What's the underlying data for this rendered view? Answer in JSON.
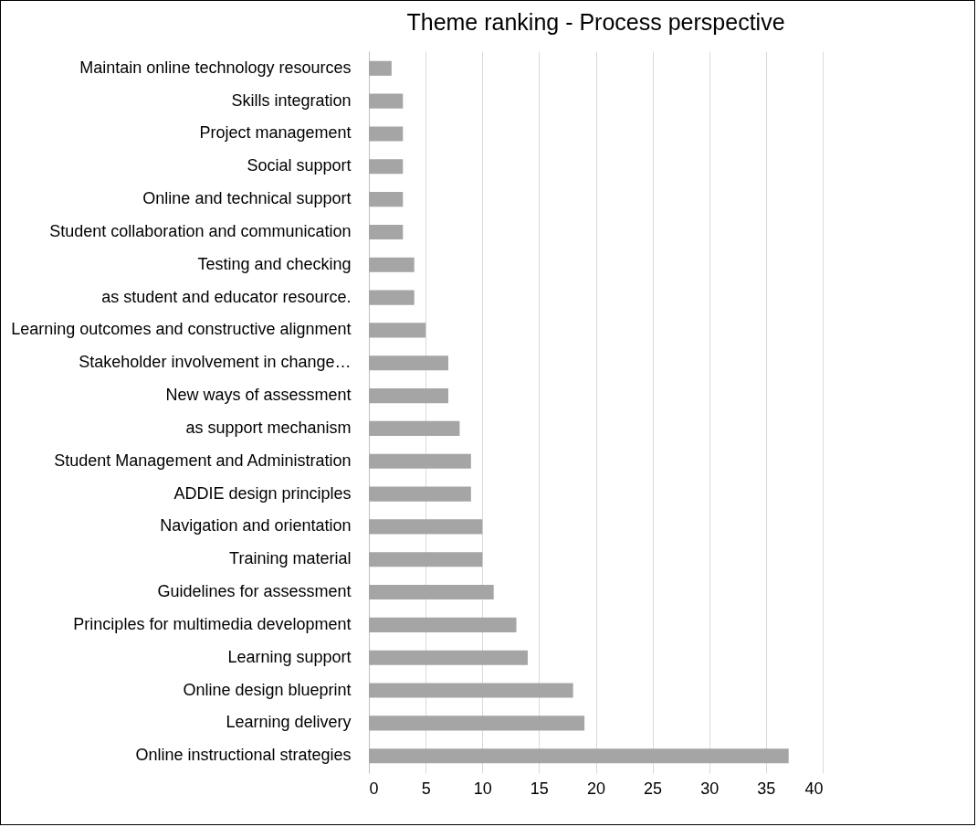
{
  "chart_data": {
    "type": "bar",
    "orientation": "horizontal",
    "title": "Theme ranking - Process perspective",
    "categories": [
      "Maintain online technology resources",
      "Skills integration",
      "Project management",
      "Social support",
      "Online and technical support",
      "Student collaboration and communication",
      "Testing and checking",
      "as student and educator resource.",
      "Learning outcomes and constructive alignment",
      "Stakeholder involvement in change…",
      "New ways of assessment",
      "as support mechanism",
      "Student Management and Administration",
      "ADDIE design principles",
      "Navigation and orientation",
      "Training material",
      "Guidelines for assessment",
      "Principles for multimedia development",
      "Learning support",
      "Online design blueprint",
      "Learning delivery",
      "Online instructional strategies"
    ],
    "values": [
      2,
      3,
      3,
      3,
      3,
      3,
      4,
      4,
      5,
      7,
      7,
      8,
      9,
      9,
      10,
      10,
      11,
      13,
      14,
      18,
      19,
      37
    ],
    "color": "#a5a5a5",
    "xlim": [
      0,
      40
    ],
    "xticks": [
      0,
      5,
      10,
      15,
      20,
      25,
      30,
      35,
      40
    ],
    "grid": "x"
  }
}
